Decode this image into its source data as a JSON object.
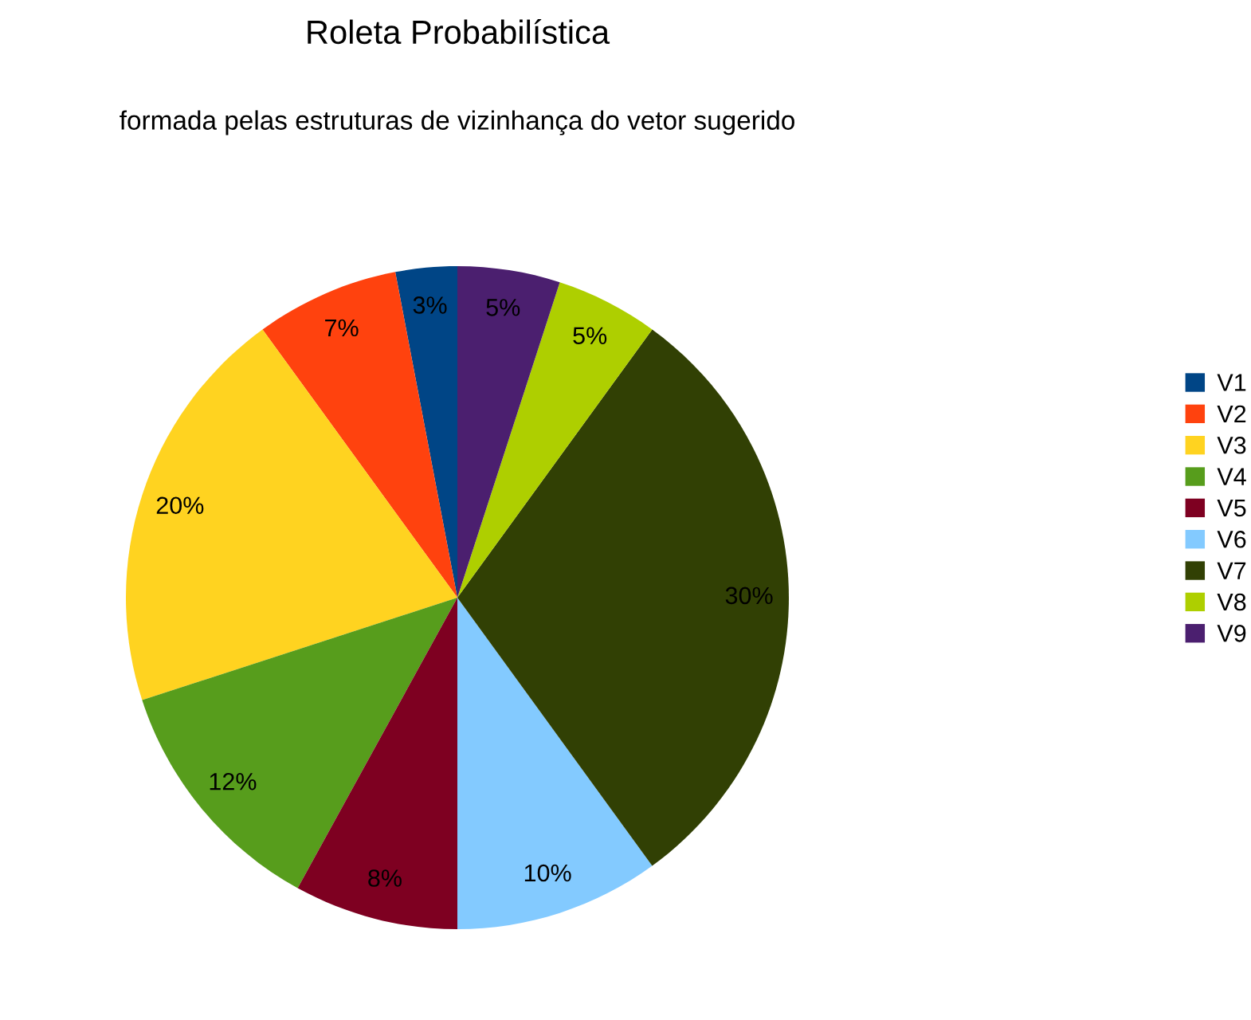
{
  "chart_data": {
    "type": "pie",
    "title": "Roleta Probabilística",
    "subtitle": "formada pelas estruturas de vizinhança do vetor sugerido",
    "categories": [
      "V1",
      "V2",
      "V3",
      "V4",
      "V5",
      "V6",
      "V7",
      "V8",
      "V9"
    ],
    "values": [
      3,
      7,
      20,
      12,
      8,
      10,
      30,
      5,
      5
    ],
    "colors": [
      "#004586",
      "#ff420e",
      "#ffd320",
      "#579d1c",
      "#7e0021",
      "#83caff",
      "#314004",
      "#aecf00",
      "#4b1f6f"
    ],
    "value_labels": [
      "3%",
      "7%",
      "20%",
      "12%",
      "8%",
      "10%",
      "30%",
      "5%",
      "5%"
    ],
    "legend": "right"
  }
}
